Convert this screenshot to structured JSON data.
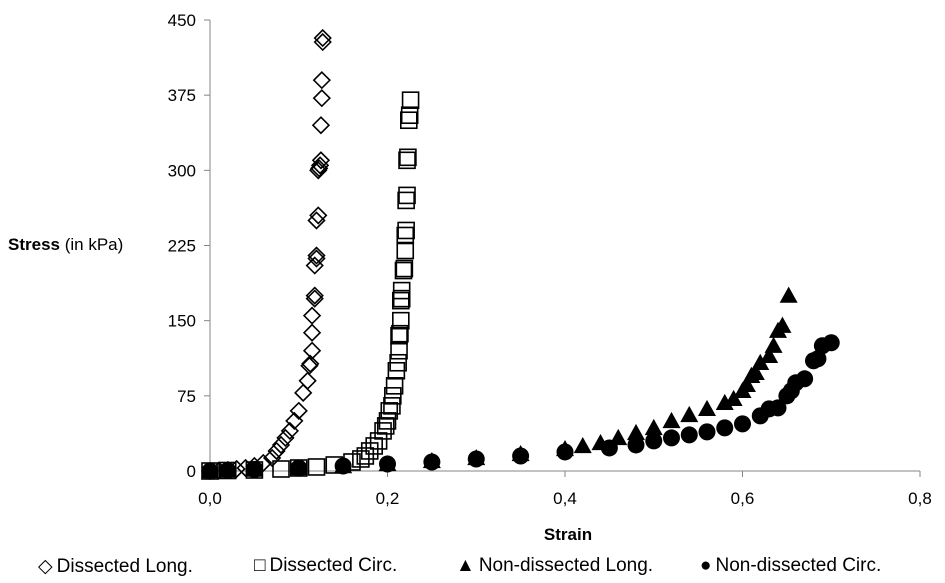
{
  "chart_data": {
    "type": "scatter",
    "xlabel": "Strain",
    "ylabel_bold": "Stress",
    "ylabel_unit": " (in kPa)",
    "xlim": [
      0,
      0.8
    ],
    "ylim": [
      0,
      450
    ],
    "x_ticks": [
      0,
      0.2,
      0.4,
      0.6,
      0.8
    ],
    "x_tick_labels": [
      "0,0",
      "0,2",
      "0,4",
      "0,6",
      "0,8"
    ],
    "y_ticks": [
      0,
      75,
      150,
      225,
      300,
      375,
      450
    ],
    "y_tick_labels": [
      "0",
      "75",
      "150",
      "225",
      "300",
      "375",
      "450"
    ],
    "grid": false,
    "legend_position": "bottom",
    "series": [
      {
        "name": "Dissected Long.",
        "marker": "diamond-open",
        "points": [
          [
            0,
            0
          ],
          [
            0.01,
            0.5
          ],
          [
            0.02,
            1
          ],
          [
            0.03,
            2
          ],
          [
            0.04,
            3
          ],
          [
            0.05,
            5
          ],
          [
            0.06,
            8
          ],
          [
            0.07,
            13
          ],
          [
            0.075,
            20
          ],
          [
            0.08,
            26
          ],
          [
            0.085,
            33
          ],
          [
            0.09,
            40
          ],
          [
            0.095,
            50
          ],
          [
            0.1,
            60
          ],
          [
            0.105,
            78
          ],
          [
            0.11,
            90
          ],
          [
            0.112,
            105
          ],
          [
            0.113,
            107
          ],
          [
            0.115,
            120
          ],
          [
            0.115,
            138
          ],
          [
            0.115,
            155
          ],
          [
            0.118,
            172
          ],
          [
            0.118,
            175
          ],
          [
            0.118,
            205
          ],
          [
            0.12,
            212
          ],
          [
            0.12,
            215
          ],
          [
            0.12,
            250
          ],
          [
            0.122,
            255
          ],
          [
            0.122,
            300
          ],
          [
            0.123,
            302
          ],
          [
            0.124,
            305
          ],
          [
            0.125,
            310
          ],
          [
            0.125,
            345
          ],
          [
            0.126,
            372
          ],
          [
            0.126,
            390
          ],
          [
            0.127,
            428
          ],
          [
            0.127,
            432
          ]
        ]
      },
      {
        "name": "Dissected Circ.",
        "marker": "square-open",
        "points": [
          [
            0,
            0
          ],
          [
            0.02,
            0.5
          ],
          [
            0.05,
            1
          ],
          [
            0.08,
            2
          ],
          [
            0.1,
            3
          ],
          [
            0.12,
            4
          ],
          [
            0.14,
            6
          ],
          [
            0.16,
            9
          ],
          [
            0.17,
            12
          ],
          [
            0.175,
            15
          ],
          [
            0.18,
            20
          ],
          [
            0.185,
            25
          ],
          [
            0.19,
            30
          ],
          [
            0.195,
            40
          ],
          [
            0.198,
            45
          ],
          [
            0.2,
            50
          ],
          [
            0.202,
            60
          ],
          [
            0.205,
            65
          ],
          [
            0.206,
            75
          ],
          [
            0.208,
            85
          ],
          [
            0.21,
            100
          ],
          [
            0.212,
            108
          ],
          [
            0.213,
            120
          ],
          [
            0.213,
            135
          ],
          [
            0.214,
            137
          ],
          [
            0.215,
            150
          ],
          [
            0.215,
            170
          ],
          [
            0.216,
            172
          ],
          [
            0.216,
            180
          ],
          [
            0.218,
            200
          ],
          [
            0.219,
            202
          ],
          [
            0.22,
            220
          ],
          [
            0.22,
            235
          ],
          [
            0.221,
            240
          ],
          [
            0.221,
            270
          ],
          [
            0.222,
            275
          ],
          [
            0.222,
            310
          ],
          [
            0.223,
            313
          ],
          [
            0.224,
            350
          ],
          [
            0.225,
            355
          ],
          [
            0.226,
            370
          ]
        ]
      },
      {
        "name": "Non-dissected Long.",
        "marker": "triangle-filled",
        "points": [
          [
            0,
            0
          ],
          [
            0.02,
            0.5
          ],
          [
            0.05,
            1.5
          ],
          [
            0.1,
            3
          ],
          [
            0.15,
            5
          ],
          [
            0.2,
            7
          ],
          [
            0.25,
            10
          ],
          [
            0.3,
            13
          ],
          [
            0.35,
            17
          ],
          [
            0.4,
            22
          ],
          [
            0.42,
            25
          ],
          [
            0.44,
            28
          ],
          [
            0.46,
            33
          ],
          [
            0.48,
            38
          ],
          [
            0.5,
            43
          ],
          [
            0.52,
            50
          ],
          [
            0.54,
            56
          ],
          [
            0.56,
            62
          ],
          [
            0.58,
            68
          ],
          [
            0.59,
            72
          ],
          [
            0.6,
            80
          ],
          [
            0.605,
            86
          ],
          [
            0.61,
            95
          ],
          [
            0.615,
            98
          ],
          [
            0.62,
            108
          ],
          [
            0.63,
            115
          ],
          [
            0.635,
            125
          ],
          [
            0.64,
            140
          ],
          [
            0.645,
            145
          ],
          [
            0.652,
            175
          ]
        ]
      },
      {
        "name": "Non-dissected Circ.",
        "marker": "circle-filled",
        "points": [
          [
            0,
            0
          ],
          [
            0.02,
            0.5
          ],
          [
            0.05,
            1.5
          ],
          [
            0.1,
            3
          ],
          [
            0.15,
            5
          ],
          [
            0.2,
            7
          ],
          [
            0.25,
            9
          ],
          [
            0.3,
            12
          ],
          [
            0.35,
            15
          ],
          [
            0.4,
            19
          ],
          [
            0.45,
            23
          ],
          [
            0.48,
            26
          ],
          [
            0.5,
            30
          ],
          [
            0.52,
            33
          ],
          [
            0.54,
            36
          ],
          [
            0.56,
            39
          ],
          [
            0.58,
            43
          ],
          [
            0.6,
            47
          ],
          [
            0.62,
            55
          ],
          [
            0.63,
            62
          ],
          [
            0.64,
            63
          ],
          [
            0.65,
            75
          ],
          [
            0.655,
            80
          ],
          [
            0.66,
            88
          ],
          [
            0.67,
            92
          ],
          [
            0.68,
            110
          ],
          [
            0.685,
            112
          ],
          [
            0.69,
            125
          ],
          [
            0.7,
            128
          ]
        ]
      }
    ]
  },
  "legend": {
    "items": [
      {
        "symbol": "◇",
        "label": "Dissected Long."
      },
      {
        "symbol": "□",
        "label": "Dissected Circ."
      },
      {
        "symbol": "▲",
        "label": "Non-dissected Long."
      },
      {
        "symbol": "●",
        "label": "Non-dissected Circ."
      }
    ]
  }
}
